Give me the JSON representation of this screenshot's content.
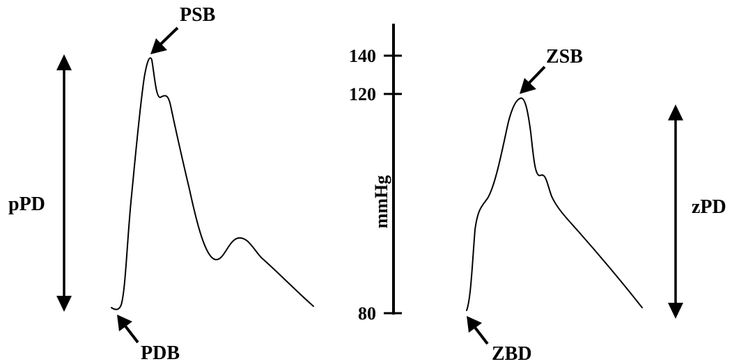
{
  "labels": {
    "left_peak": "PSB",
    "left_base": "PDB",
    "left_range": "pPD",
    "right_peak": "ZSB",
    "right_base": "ZBD",
    "right_range": "zPD"
  },
  "axis": {
    "unit_label": "mmHg",
    "ticks": [
      "140",
      "120",
      "80"
    ]
  },
  "colors": {
    "ink": "#000000",
    "background": "#ffffff"
  }
}
